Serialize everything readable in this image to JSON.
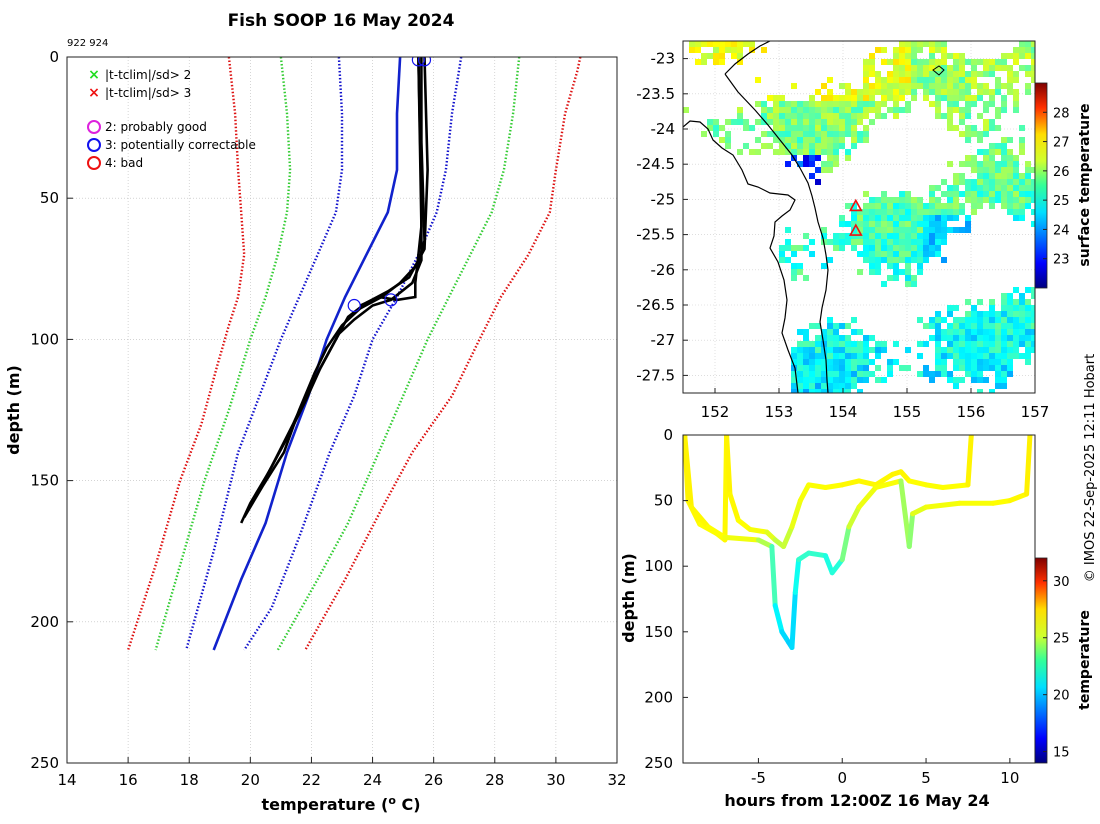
{
  "page": {
    "title": "Fish SOOP 16 May 2024",
    "ids": "922 924",
    "credit": "© IMOS 22-Sep-2025 12:11 Hobart"
  },
  "legend": {
    "items": [
      {
        "label": "|t-tclim|/sd> 2",
        "marker": "x",
        "color": "#22dd22"
      },
      {
        "label": "|t-tclim|/sd> 3",
        "marker": "x",
        "color": "#ee1111"
      },
      {
        "label": "2: probably good",
        "marker": "o",
        "color": "#dd22dd"
      },
      {
        "label": "3: potentially correctable",
        "marker": "o",
        "color": "#1111ee"
      },
      {
        "label": "4: bad",
        "marker": "o",
        "color": "#ee1111"
      }
    ]
  },
  "chart_data": [
    {
      "type": "line",
      "name": "profile",
      "xlabel": "temperature (",
      "xlabel_sup": "o",
      "xlabel_suffix": " C)",
      "ylabel": "depth (m)",
      "xlim": [
        14,
        32
      ],
      "ylim": [
        0,
        250
      ],
      "y_reversed": true,
      "xticks": [
        14,
        16,
        18,
        20,
        22,
        24,
        26,
        28,
        30,
        32
      ],
      "yticks": [
        0,
        50,
        100,
        150,
        200,
        250
      ],
      "grid": true,
      "series": [
        {
          "name": "clim -3sd",
          "style": "dotted",
          "color": "#dd1111",
          "points": [
            [
              19.3,
              0
            ],
            [
              19.5,
              20
            ],
            [
              19.6,
              40
            ],
            [
              19.7,
              55
            ],
            [
              19.8,
              70
            ],
            [
              19.6,
              85
            ],
            [
              19.3,
              95
            ],
            [
              18.9,
              110
            ],
            [
              18.4,
              130
            ],
            [
              17.7,
              150
            ],
            [
              16.9,
              180
            ],
            [
              16.0,
              210
            ]
          ]
        },
        {
          "name": "clim -2sd",
          "style": "dotted",
          "color": "#33cc33",
          "points": [
            [
              21.0,
              0
            ],
            [
              21.2,
              20
            ],
            [
              21.3,
              40
            ],
            [
              21.2,
              55
            ],
            [
              20.9,
              70
            ],
            [
              20.5,
              85
            ],
            [
              20.0,
              100
            ],
            [
              19.3,
              125
            ],
            [
              18.5,
              150
            ],
            [
              17.7,
              180
            ],
            [
              16.9,
              210
            ]
          ]
        },
        {
          "name": "clim -1sd",
          "style": "dotted",
          "color": "#1111cc",
          "points": [
            [
              22.9,
              0
            ],
            [
              23.0,
              20
            ],
            [
              23.0,
              40
            ],
            [
              22.8,
              55
            ],
            [
              22.2,
              70
            ],
            [
              21.6,
              85
            ],
            [
              21.0,
              100
            ],
            [
              20.3,
              120
            ],
            [
              19.6,
              140
            ],
            [
              18.8,
              175
            ],
            [
              17.9,
              210
            ]
          ]
        },
        {
          "name": "clim mean",
          "style": "solid",
          "color": "#1122cc",
          "points": [
            [
              24.9,
              0
            ],
            [
              24.8,
              20
            ],
            [
              24.8,
              40
            ],
            [
              24.5,
              55
            ],
            [
              23.8,
              70
            ],
            [
              23.1,
              85
            ],
            [
              22.5,
              100
            ],
            [
              21.9,
              120
            ],
            [
              21.2,
              140
            ],
            [
              20.5,
              165
            ],
            [
              19.7,
              185
            ],
            [
              18.8,
              210
            ]
          ]
        },
        {
          "name": "clim +1sd",
          "style": "dotted",
          "color": "#1111cc",
          "points": [
            [
              26.9,
              0
            ],
            [
              26.6,
              20
            ],
            [
              26.4,
              40
            ],
            [
              26.1,
              55
            ],
            [
              25.5,
              70
            ],
            [
              24.8,
              85
            ],
            [
              24.0,
              100
            ],
            [
              23.4,
              120
            ],
            [
              22.6,
              140
            ],
            [
              21.6,
              170
            ],
            [
              20.7,
              195
            ],
            [
              19.8,
              210
            ]
          ]
        },
        {
          "name": "clim +2sd",
          "style": "dotted",
          "color": "#33cc33",
          "points": [
            [
              28.8,
              0
            ],
            [
              28.6,
              20
            ],
            [
              28.3,
              40
            ],
            [
              27.9,
              55
            ],
            [
              27.2,
              70
            ],
            [
              26.5,
              85
            ],
            [
              25.8,
              100
            ],
            [
              25.0,
              120
            ],
            [
              24.2,
              140
            ],
            [
              23.2,
              165
            ],
            [
              22.2,
              185
            ],
            [
              20.9,
              210
            ]
          ]
        },
        {
          "name": "clim +3sd",
          "style": "dotted",
          "color": "#dd1111",
          "points": [
            [
              30.8,
              0
            ],
            [
              30.7,
              5
            ],
            [
              30.3,
              20
            ],
            [
              30.0,
              40
            ],
            [
              29.8,
              55
            ],
            [
              29.1,
              70
            ],
            [
              28.2,
              85
            ],
            [
              27.5,
              100
            ],
            [
              26.6,
              120
            ],
            [
              25.3,
              140
            ],
            [
              24.3,
              160
            ],
            [
              23.1,
              185
            ],
            [
              21.8,
              210
            ]
          ]
        },
        {
          "name": "profile A",
          "style": "solid",
          "color": "#000000",
          "points": [
            [
              25.6,
              0
            ],
            [
              25.6,
              30
            ],
            [
              25.7,
              65
            ],
            [
              25.5,
              73
            ],
            [
              24.9,
              80
            ],
            [
              24.3,
              85
            ],
            [
              23.6,
              89
            ],
            [
              23.0,
              95
            ],
            [
              22.5,
              103
            ],
            [
              22.1,
              112
            ],
            [
              21.6,
              125
            ],
            [
              21.1,
              140
            ],
            [
              20.4,
              152
            ],
            [
              19.8,
              163
            ]
          ]
        },
        {
          "name": "profile B",
          "style": "solid",
          "color": "#000000",
          "points": [
            [
              25.7,
              0
            ],
            [
              25.8,
              40
            ],
            [
              25.7,
              68
            ],
            [
              25.2,
              78
            ],
            [
              24.5,
              83
            ],
            [
              23.8,
              87
            ],
            [
              23.2,
              92
            ],
            [
              22.8,
              100
            ],
            [
              22.3,
              110
            ],
            [
              21.8,
              122
            ],
            [
              21.2,
              135
            ],
            [
              20.6,
              147
            ],
            [
              20.0,
              158
            ],
            [
              19.7,
              165
            ]
          ]
        },
        {
          "name": "profile C",
          "style": "solid",
          "color": "#000000",
          "points": [
            [
              25.5,
              0
            ],
            [
              25.6,
              50
            ],
            [
              25.6,
              72
            ],
            [
              25.3,
              80
            ],
            [
              24.6,
              86
            ],
            [
              24.0,
              88
            ],
            [
              23.4,
              93
            ],
            [
              22.9,
              98
            ],
            [
              22.4,
              108
            ],
            [
              21.9,
              118
            ],
            [
              21.4,
              130
            ],
            [
              20.7,
              145
            ],
            [
              20.1,
              157
            ]
          ]
        },
        {
          "name": "profile D",
          "style": "solid",
          "color": "#000000",
          "points": [
            [
              25.5,
              0
            ],
            [
              25.6,
              60
            ],
            [
              25.5,
              70
            ],
            [
              25.4,
              80
            ],
            [
              25.4,
              85
            ],
            [
              24.8,
              86
            ],
            [
              24.2,
              85
            ],
            [
              23.6,
              88
            ]
          ]
        }
      ],
      "flags": [
        {
          "temp": 25.7,
          "depth": 1,
          "color": "#1111ee"
        },
        {
          "temp": 25.5,
          "depth": 1,
          "color": "#1111ee"
        },
        {
          "temp": 23.4,
          "depth": 88,
          "color": "#1111ee"
        },
        {
          "temp": 24.6,
          "depth": 86,
          "color": "#1111ee"
        }
      ]
    },
    {
      "type": "heatmap",
      "name": "map",
      "xlim": [
        151.5,
        157
      ],
      "ylim": [
        -27.75,
        -22.75
      ],
      "xticks": [
        152,
        153,
        154,
        155,
        156,
        157
      ],
      "yticks": [
        -23,
        -23.5,
        -24,
        -24.5,
        -25,
        -25.5,
        -26,
        -26.5,
        -27,
        -27.5
      ],
      "ytick_labels": [
        "-23",
        "-23.5",
        "-24",
        "-24.5",
        "-25",
        "-25.5",
        "-26",
        "-26.5",
        "-27",
        "-27.5"
      ],
      "colorbar": {
        "label": "surface temperature",
        "range": [
          22,
          29
        ],
        "ticks": [
          23,
          24,
          25,
          26,
          27,
          28
        ]
      },
      "stations": [
        {
          "lon": 154.2,
          "lat": -25.1
        },
        {
          "lon": 154.2,
          "lat": -25.45
        }
      ]
    },
    {
      "type": "scatter",
      "name": "time-depth",
      "xlabel": "hours from 12:00Z 16 May 24",
      "ylabel": "depth (m)",
      "xlim": [
        -9.5,
        11.5
      ],
      "ylim": [
        0,
        250
      ],
      "y_reversed": true,
      "xticks": [
        -5,
        0,
        5,
        10
      ],
      "yticks": [
        0,
        50,
        100,
        150,
        200,
        250
      ],
      "colorbar": {
        "label": "temperature",
        "range": [
          14,
          32
        ],
        "ticks": [
          15,
          20,
          25,
          30
        ]
      },
      "tracks": [
        {
          "points": [
            [
              -9.4,
              0,
              25.5
            ],
            [
              -9.2,
              50,
              25.4
            ],
            [
              -8.5,
              68,
              25.3
            ],
            [
              -7.5,
              75,
              25.2
            ],
            [
              -7.0,
              80,
              25.2
            ],
            [
              -6.9,
              0,
              25.5
            ],
            [
              -6.7,
              45,
              25.4
            ],
            [
              -6.2,
              65,
              25.3
            ],
            [
              -5.5,
              72,
              25.2
            ],
            [
              -4.5,
              74,
              25.0
            ],
            [
              -4.0,
              80,
              24.5
            ],
            [
              -3.5,
              85,
              23.8
            ],
            [
              -3.0,
              70,
              24.8
            ],
            [
              -2.5,
              50,
              25.0
            ],
            [
              -2.0,
              38,
              25.2
            ],
            [
              -1.0,
              40,
              25.2
            ],
            [
              0.0,
              38,
              25.3
            ],
            [
              1.0,
              35,
              25.4
            ],
            [
              2.0,
              38,
              25.3
            ],
            [
              3.0,
              30,
              25.4
            ],
            [
              3.5,
              28,
              25.5
            ],
            [
              4.0,
              35,
              25.3
            ],
            [
              5.0,
              38,
              25.2
            ],
            [
              6.0,
              40,
              25.2
            ],
            [
              7.5,
              38,
              25.3
            ],
            [
              7.7,
              0,
              25.6
            ]
          ]
        },
        {
          "points": [
            [
              -9.4,
              0,
              25.5
            ],
            [
              -9.0,
              55,
              25.4
            ],
            [
              -8.0,
              70,
              25.3
            ],
            [
              -7.0,
              78,
              25.2
            ],
            [
              -5.0,
              80,
              24.8
            ],
            [
              -4.2,
              85,
              23.0
            ],
            [
              -4.0,
              130,
              21.0
            ],
            [
              -3.6,
              150,
              20.2
            ],
            [
              -3.2,
              158,
              20.0
            ],
            [
              -3.0,
              162,
              19.8
            ],
            [
              -2.8,
              120,
              20.5
            ],
            [
              -2.6,
              95,
              21.5
            ],
            [
              -2.0,
              90,
              21.8
            ],
            [
              -1.0,
              92,
              21.5
            ],
            [
              -0.6,
              105,
              21.0
            ],
            [
              0.0,
              95,
              21.8
            ],
            [
              0.4,
              70,
              24.0
            ],
            [
              1.0,
              55,
              24.8
            ],
            [
              2.0,
              40,
              25.1
            ],
            [
              3.5,
              35,
              25.2
            ],
            [
              4.0,
              85,
              22.0
            ],
            [
              4.2,
              60,
              24.5
            ],
            [
              5.0,
              55,
              25.0
            ],
            [
              7.0,
              52,
              25.1
            ],
            [
              9.0,
              52,
              25.2
            ],
            [
              10.0,
              50,
              25.3
            ],
            [
              11.0,
              45,
              25.4
            ],
            [
              11.2,
              0,
              25.6
            ]
          ]
        }
      ]
    }
  ]
}
